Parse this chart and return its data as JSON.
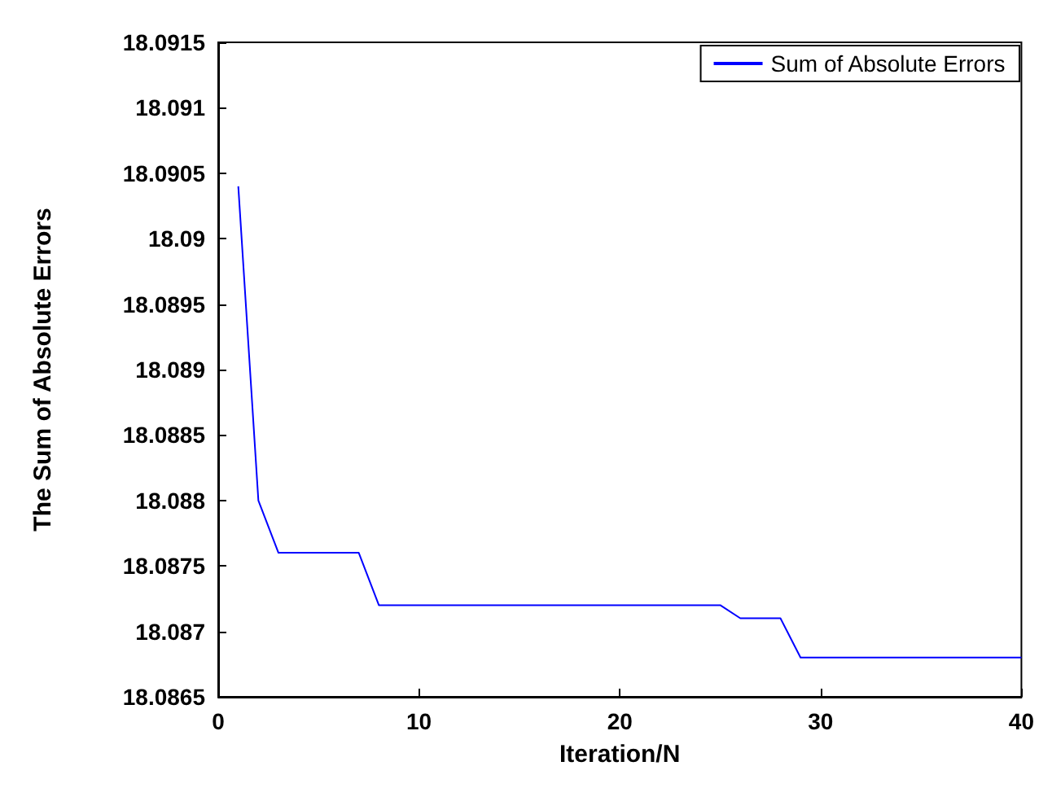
{
  "chart_data": {
    "type": "line",
    "xlabel": "Iteration/N",
    "ylabel": "The Sum of Absolute Errors",
    "xlim": [
      0,
      40
    ],
    "xticks": [
      0,
      10,
      20,
      30,
      40
    ],
    "ylim": [
      18.0865,
      18.0915
    ],
    "yticks": [
      18.0865,
      18.087,
      18.0875,
      18.088,
      18.0885,
      18.089,
      18.0895,
      18.09,
      18.0905,
      18.091,
      18.0915
    ],
    "legend": "top right",
    "grid": false,
    "series": [
      {
        "name": "Sum of Absolute Errors",
        "color": "#0000ff",
        "x": [
          1,
          2,
          3,
          7,
          8,
          25,
          26,
          28,
          29,
          40
        ],
        "values": [
          18.0904,
          18.088,
          18.0876,
          18.0876,
          18.0872,
          18.0872,
          18.0871,
          18.0871,
          18.0868,
          18.0868
        ]
      }
    ]
  }
}
